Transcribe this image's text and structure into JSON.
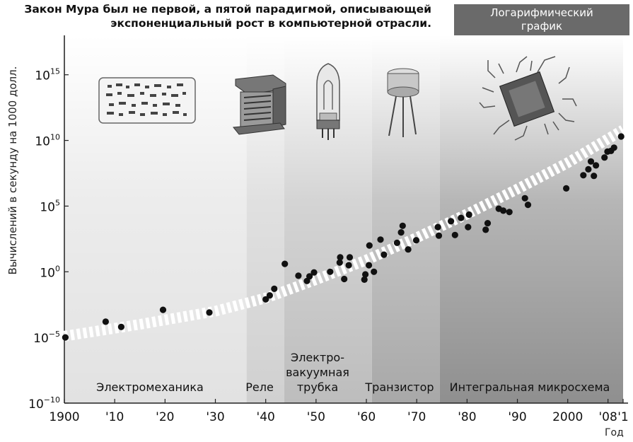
{
  "title_lines": [
    "Закон Мура был не первой, а пятой парадигмой, описывающей",
    "экспоненциальный рост в компьютерной отрасли."
  ],
  "badge_lines": [
    "Логарифмический",
    "график"
  ],
  "chart_data": {
    "type": "scatter",
    "title": "Закон Мура был не первой, а пятой парадигмой, описывающей экспоненциальный рост в компьютерной отрасли.",
    "xlabel": "Год",
    "ylabel": "Вычислений в секунду на 1000 долл.",
    "yscale": "log",
    "xlim": [
      1900,
      2011
    ],
    "ylim_exponent": [
      -10,
      18
    ],
    "x_ticks": [
      {
        "value": 1900,
        "label": "1900"
      },
      {
        "value": 1910,
        "label": "'10"
      },
      {
        "value": 1920,
        "label": "'20"
      },
      {
        "value": 1930,
        "label": "'30"
      },
      {
        "value": 1940,
        "label": "'40"
      },
      {
        "value": 1950,
        "label": "'50"
      },
      {
        "value": 1960,
        "label": "'60"
      },
      {
        "value": 1970,
        "label": "'70"
      },
      {
        "value": 1980,
        "label": "'80"
      },
      {
        "value": 1990,
        "label": "'90"
      },
      {
        "value": 2000,
        "label": "2000"
      },
      {
        "value": 2008,
        "label": "'08"
      },
      {
        "value": 2011,
        "label": "'1"
      }
    ],
    "y_ticks": [
      {
        "exp": -10,
        "base": "10",
        "sup": "−10"
      },
      {
        "exp": -5,
        "base": "10",
        "sup": "−5"
      },
      {
        "exp": 0,
        "base": "10",
        "sup": "0"
      },
      {
        "exp": 5,
        "base": "10",
        "sup": "5"
      },
      {
        "exp": 10,
        "base": "10",
        "sup": "10"
      },
      {
        "exp": 15,
        "base": "10",
        "sup": "15"
      }
    ],
    "paradigms": [
      {
        "name": "Электромеханика",
        "start": 1900,
        "end": 1936.2,
        "color": "#e2e2e2",
        "text_color": "#111"
      },
      {
        "name": "Реле",
        "start": 1936.2,
        "end": 1943.7,
        "color": "#d0d0d0",
        "text_color": "#111"
      },
      {
        "name": "Электро-\nвакуумная\nтрубка",
        "start": 1943.7,
        "end": 1961.1,
        "color": "#bdbdbd",
        "text_color": "#111"
      },
      {
        "name": "Транзистор",
        "start": 1961.1,
        "end": 1974.6,
        "color": "#a8a8a8",
        "text_color": "#111"
      },
      {
        "name": "Интегральная микросхема",
        "start": 1974.6,
        "end": 2011,
        "color": "#8f8f8f",
        "text_color": "#111"
      }
    ],
    "trend": [
      {
        "x": 1900,
        "y": -4.9
      },
      {
        "x": 1915,
        "y": -4.0
      },
      {
        "x": 1930,
        "y": -3.0
      },
      {
        "x": 1940,
        "y": -2.0
      },
      {
        "x": 1950,
        "y": -0.6
      },
      {
        "x": 1960,
        "y": 0.9
      },
      {
        "x": 1970,
        "y": 2.6
      },
      {
        "x": 1980,
        "y": 4.4
      },
      {
        "x": 1990,
        "y": 6.3
      },
      {
        "x": 2000,
        "y": 8.3
      },
      {
        "x": 2011,
        "y": 10.8
      }
    ],
    "points": [
      {
        "x": 1900.2,
        "y": -5.0
      },
      {
        "x": 1908.2,
        "y": -3.8
      },
      {
        "x": 1911.3,
        "y": -4.2
      },
      {
        "x": 1919.6,
        "y": -2.9
      },
      {
        "x": 1928.8,
        "y": -3.1
      },
      {
        "x": 1940,
        "y": -2.1
      },
      {
        "x": 1940.8,
        "y": -1.8
      },
      {
        "x": 1941.7,
        "y": -1.3
      },
      {
        "x": 1943.8,
        "y": 0.6
      },
      {
        "x": 1946.5,
        "y": -0.3
      },
      {
        "x": 1948.2,
        "y": -0.7
      },
      {
        "x": 1948.7,
        "y": -0.35
      },
      {
        "x": 1949.6,
        "y": -0.05
      },
      {
        "x": 1952.8,
        "y": 0.0
      },
      {
        "x": 1954.7,
        "y": 0.7
      },
      {
        "x": 1954.8,
        "y": 1.1
      },
      {
        "x": 1955.6,
        "y": -0.55
      },
      {
        "x": 1956.5,
        "y": 0.5
      },
      {
        "x": 1956.7,
        "y": 1.1
      },
      {
        "x": 1959.6,
        "y": -0.6
      },
      {
        "x": 1959.8,
        "y": -0.2
      },
      {
        "x": 1960.5,
        "y": 0.5
      },
      {
        "x": 1960.6,
        "y": 2.0
      },
      {
        "x": 1961.5,
        "y": 0.0
      },
      {
        "x": 1962.8,
        "y": 2.45
      },
      {
        "x": 1963.5,
        "y": 1.3
      },
      {
        "x": 1966.1,
        "y": 2.2
      },
      {
        "x": 1966.9,
        "y": 3.0
      },
      {
        "x": 1967.2,
        "y": 3.5
      },
      {
        "x": 1968.3,
        "y": 1.7
      },
      {
        "x": 1969.9,
        "y": 2.4
      },
      {
        "x": 1974.2,
        "y": 3.4
      },
      {
        "x": 1974.4,
        "y": 2.75
      },
      {
        "x": 1976.8,
        "y": 3.85
      },
      {
        "x": 1977.6,
        "y": 2.8
      },
      {
        "x": 1978.8,
        "y": 4.1
      },
      {
        "x": 1980.2,
        "y": 3.4
      },
      {
        "x": 1980.4,
        "y": 4.35
      },
      {
        "x": 1983.7,
        "y": 3.2
      },
      {
        "x": 1984.1,
        "y": 3.7
      },
      {
        "x": 1986.3,
        "y": 4.8
      },
      {
        "x": 1987.2,
        "y": 4.65
      },
      {
        "x": 1988.4,
        "y": 4.55
      },
      {
        "x": 1991.5,
        "y": 5.6
      },
      {
        "x": 1992.1,
        "y": 5.1
      },
      {
        "x": 1999.7,
        "y": 6.35
      },
      {
        "x": 2003.1,
        "y": 7.35
      },
      {
        "x": 2004.1,
        "y": 7.8
      },
      {
        "x": 2004.6,
        "y": 8.4
      },
      {
        "x": 2005.2,
        "y": 7.3
      },
      {
        "x": 2005.6,
        "y": 8.1
      },
      {
        "x": 2007.3,
        "y": 8.7
      },
      {
        "x": 2007.9,
        "y": 9.15
      },
      {
        "x": 2008.6,
        "y": 9.2
      },
      {
        "x": 2009.2,
        "y": 9.45
      },
      {
        "x": 2010.6,
        "y": 10.3
      }
    ]
  }
}
